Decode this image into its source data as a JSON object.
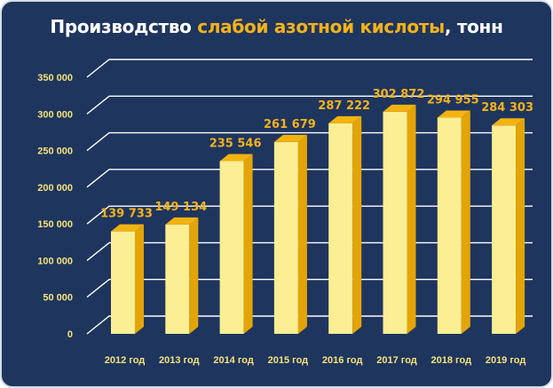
{
  "title": {
    "part1": "Производство ",
    "part2": "слабой азотной кислоты",
    "part3": ", тонн"
  },
  "colors": {
    "background": "#1e355e",
    "title_accent": "#f6b21a",
    "bar_front": "#fbee93",
    "bar_side": "#e3a407",
    "bar_top": "#f3b30f",
    "label": "#f6b21a",
    "tick": "#f6e27a"
  },
  "chart_data": {
    "type": "bar",
    "title": "Производство слабой азотной кислоты, тонн",
    "categories": [
      "2012 год",
      "2013 год",
      "2014 год",
      "2015 год",
      "2016 год",
      "2017 год",
      "2018 год",
      "2019 год"
    ],
    "values": [
      139733,
      149134,
      235546,
      261679,
      287222,
      302872,
      294955,
      284303
    ],
    "value_labels": [
      "139 733",
      "149 134",
      "235 546",
      "261 679",
      "287 222",
      "302 872",
      "294 955",
      "284 303"
    ],
    "yticks": [
      "0",
      "50 000",
      "100 000",
      "150 000",
      "200 000",
      "250 000",
      "300 000",
      "350 000"
    ],
    "ylim": [
      0,
      350000
    ],
    "xlabel": "",
    "ylabel": "",
    "grid": true,
    "legend": "none",
    "style": "3d-columns"
  }
}
